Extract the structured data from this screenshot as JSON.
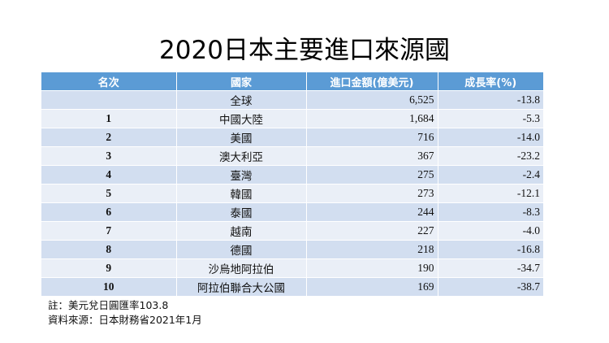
{
  "title": "2020日本主要進口來源國",
  "table": {
    "headers": [
      "名次",
      "國家",
      "進口金額(億美元)",
      "成長率(%)"
    ],
    "rows": [
      {
        "rank": "",
        "country": "全球",
        "amount": "6,525",
        "growth": "-13.8"
      },
      {
        "rank": "1",
        "country": "中國大陸",
        "amount": "1,684",
        "growth": "-5.3"
      },
      {
        "rank": "2",
        "country": "美國",
        "amount": "716",
        "growth": "-14.0"
      },
      {
        "rank": "3",
        "country": "澳大利亞",
        "amount": "367",
        "growth": "-23.2"
      },
      {
        "rank": "4",
        "country": "臺灣",
        "amount": "275",
        "growth": "-2.4"
      },
      {
        "rank": "5",
        "country": "韓國",
        "amount": "273",
        "growth": "-12.1"
      },
      {
        "rank": "6",
        "country": "泰國",
        "amount": "244",
        "growth": "-8.3"
      },
      {
        "rank": "7",
        "country": "越南",
        "amount": "227",
        "growth": "-4.0"
      },
      {
        "rank": "8",
        "country": "德國",
        "amount": "218",
        "growth": "-16.8"
      },
      {
        "rank": "9",
        "country": "沙烏地阿拉伯",
        "amount": "190",
        "growth": "-34.7"
      },
      {
        "rank": "10",
        "country": "阿拉伯聯合大公國",
        "amount": "169",
        "growth": "-38.7"
      }
    ]
  },
  "notes": {
    "exchange_rate": "註：美元兌日圓匯率103.8",
    "source": "資料來源：日本財務省2021年1月"
  },
  "colors": {
    "header_bg": "#5b9bd5",
    "row_odd_bg": "#d2def0",
    "row_even_bg": "#eaeff7"
  }
}
